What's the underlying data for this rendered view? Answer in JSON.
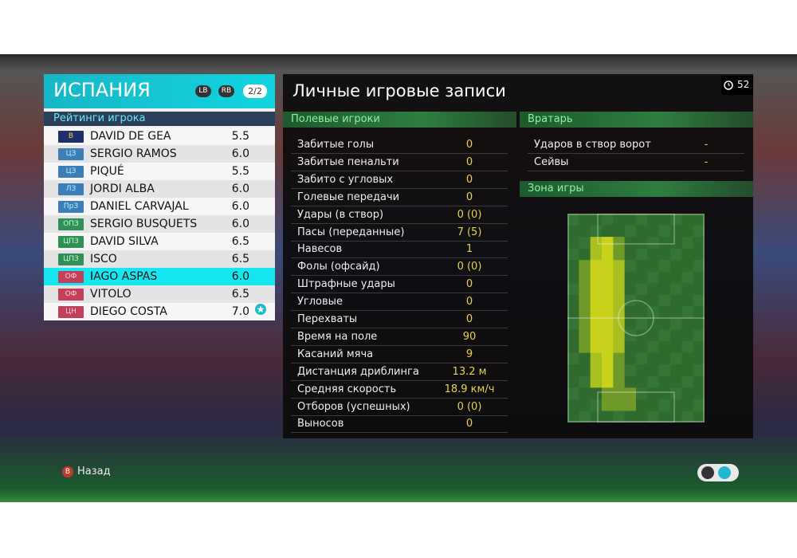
{
  "team": {
    "name": "ИСПАНИЯ",
    "buttons": [
      "LB",
      "RB"
    ],
    "page": "2/2",
    "ratings_title": "Рейтинги игрока",
    "selected": 8,
    "players": [
      {
        "position": "В",
        "name": "DAVID DE GEA",
        "rating": "5.5"
      },
      {
        "position": "ЦЗ",
        "name": "SERGIO RAMOS",
        "rating": "6.0"
      },
      {
        "position": "ЦЗ",
        "name": "PIQUÉ",
        "rating": "5.5"
      },
      {
        "position": "ЛЗ",
        "name": "JORDI ALBA",
        "rating": "6.0"
      },
      {
        "position": "ПрЗ",
        "name": "DANIEL CARVAJAL",
        "rating": "6.0"
      },
      {
        "position": "ОПЗ",
        "name": "SERGIO BUSQUETS",
        "rating": "6.0"
      },
      {
        "position": "ЦПЗ",
        "name": "DAVID SILVA",
        "rating": "6.5"
      },
      {
        "position": "ЦПЗ",
        "name": "ISCO",
        "rating": "6.5"
      },
      {
        "position": "ОФ",
        "name": "IAGO ASPAS",
        "rating": "6.0"
      },
      {
        "position": "ОФ",
        "name": "VITOLO",
        "rating": "6.5"
      },
      {
        "position": "ЦН",
        "name": "DIEGO COSTA",
        "rating": "7.0"
      }
    ]
  },
  "records": {
    "title": "Личные игровые записи",
    "timer": "52",
    "field": {
      "title": "Полевые игроки",
      "rows": [
        {
          "label": "Забитые голы",
          "value": "0"
        },
        {
          "label": "Забитые пенальти",
          "value": "0"
        },
        {
          "label": "Забито с угловых",
          "value": "0"
        },
        {
          "label": "Голевые передачи",
          "value": "0"
        },
        {
          "label": "Удары (в створ)",
          "value": "0 (0)"
        },
        {
          "label": "Пасы (переданные)",
          "value": "7 (5)"
        },
        {
          "label": "Навесов",
          "value": "1"
        },
        {
          "label": "Фолы (офсайд)",
          "value": "0 (0)"
        },
        {
          "label": "Штрафные удары",
          "value": "0"
        },
        {
          "label": "Угловые",
          "value": "0"
        },
        {
          "label": "Перехваты",
          "value": "0"
        },
        {
          "label": "Время на поле",
          "value": "90"
        },
        {
          "label": "Касаний мяча",
          "value": "9"
        },
        {
          "label": "Дистанция дриблинга",
          "value": "13.2 м"
        },
        {
          "label": "Средняя скорость",
          "value": "18.9 км/ч"
        },
        {
          "label": "Отборов (успешных)",
          "value": "0 (0)"
        },
        {
          "label": "Выносов",
          "value": "0"
        }
      ]
    },
    "goalkeeper": {
      "title": "Вратарь",
      "rows": [
        {
          "label": "Ударов в створ ворот",
          "value": "-"
        },
        {
          "label": "Сейвы",
          "value": "-"
        }
      ]
    },
    "zone_title": "Зона игры"
  },
  "footer": {
    "button": "B",
    "back": "Назад"
  }
}
